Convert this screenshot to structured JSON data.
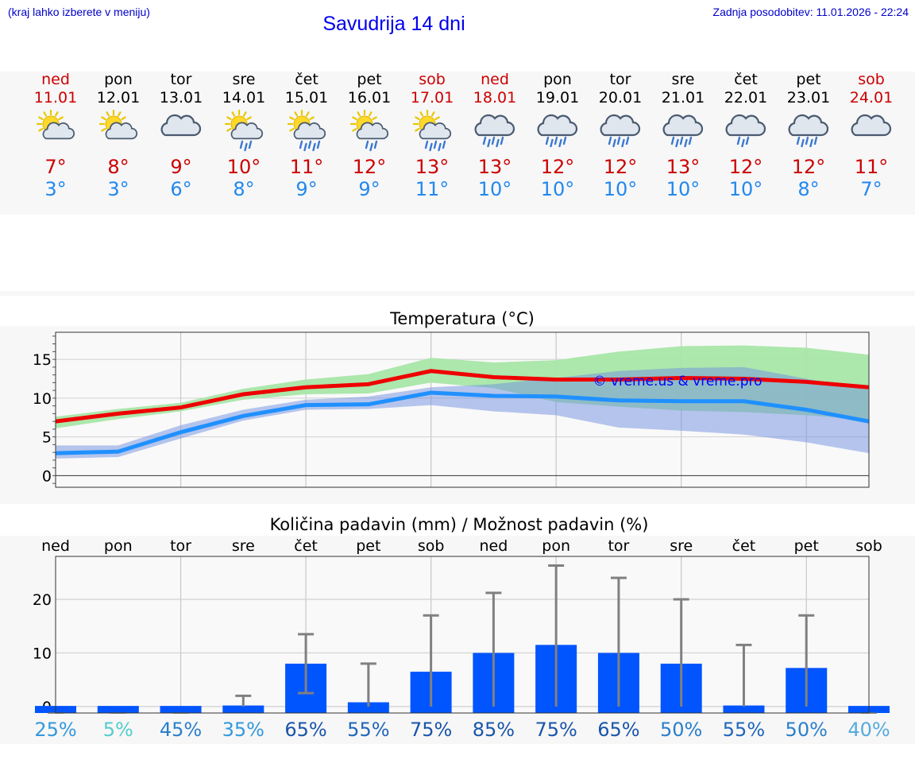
{
  "header": {
    "note": "(kraj lahko izberete v meniju)",
    "title": "Savudrija 14 dni",
    "updated": "Zadnja posodobitev: 11.01.2026 - 22:24"
  },
  "forecast": [
    {
      "day": "ned",
      "date": "11.01",
      "weekend": true,
      "icon": "sun-cloud-icon",
      "tmax": "7°",
      "tmin": "3°"
    },
    {
      "day": "pon",
      "date": "12.01",
      "weekend": false,
      "icon": "sun-cloud-icon",
      "tmax": "8°",
      "tmin": "3°"
    },
    {
      "day": "tor",
      "date": "13.01",
      "weekend": false,
      "icon": "cloud-icon",
      "tmax": "9°",
      "tmin": "6°"
    },
    {
      "day": "sre",
      "date": "14.01",
      "weekend": false,
      "icon": "sun-cloud-rain-icon",
      "tmax": "10°",
      "tmin": "8°"
    },
    {
      "day": "čet",
      "date": "15.01",
      "weekend": false,
      "icon": "sun-cloud-heavy-rain-icon",
      "tmax": "11°",
      "tmin": "9°"
    },
    {
      "day": "pet",
      "date": "16.01",
      "weekend": false,
      "icon": "sun-cloud-rain-icon",
      "tmax": "12°",
      "tmin": "9°"
    },
    {
      "day": "sob",
      "date": "17.01",
      "weekend": true,
      "icon": "sun-cloud-heavy-rain-icon",
      "tmax": "13°",
      "tmin": "11°"
    },
    {
      "day": "ned",
      "date": "18.01",
      "weekend": true,
      "icon": "cloud-heavy-rain-icon",
      "tmax": "13°",
      "tmin": "10°"
    },
    {
      "day": "pon",
      "date": "19.01",
      "weekend": false,
      "icon": "cloud-heavy-rain-icon",
      "tmax": "12°",
      "tmin": "10°"
    },
    {
      "day": "tor",
      "date": "20.01",
      "weekend": false,
      "icon": "cloud-heavy-rain-icon",
      "tmax": "12°",
      "tmin": "10°"
    },
    {
      "day": "sre",
      "date": "21.01",
      "weekend": false,
      "icon": "cloud-heavy-rain-icon",
      "tmax": "13°",
      "tmin": "10°"
    },
    {
      "day": "čet",
      "date": "22.01",
      "weekend": false,
      "icon": "cloud-rain-icon",
      "tmax": "12°",
      "tmin": "10°"
    },
    {
      "day": "pet",
      "date": "23.01",
      "weekend": false,
      "icon": "cloud-heavy-rain-icon",
      "tmax": "12°",
      "tmin": "8°"
    },
    {
      "day": "sob",
      "date": "24.01",
      "weekend": true,
      "icon": "cloud-icon",
      "tmax": "11°",
      "tmin": "7°"
    }
  ],
  "colors": {
    "max_line": "#ee0000",
    "min_line": "#2090ff",
    "max_band": "#a8e6a8",
    "min_band": "#aabfef",
    "overlap_band": "#80c8a8",
    "bar": "#0055ff",
    "whisker": "#808080",
    "weekend": "#cc0000"
  },
  "chart_data": [
    {
      "type": "line",
      "title": "Temperatura (°C)",
      "x": [
        0,
        1,
        2,
        3,
        4,
        5,
        6,
        7,
        8,
        9,
        10,
        11,
        12,
        13
      ],
      "ylim": [
        -1.5,
        18.5
      ],
      "yticks": [
        0,
        5,
        10,
        15
      ],
      "watermark": "© vreme.us & vreme.pro",
      "series": [
        {
          "name": "max",
          "values": [
            7,
            8,
            8.8,
            10.5,
            11.4,
            11.8,
            13.5,
            12.7,
            12.4,
            12.4,
            12.6,
            12.5,
            12.1,
            11.4
          ],
          "band_low": [
            6.1,
            7.3,
            8.3,
            9.8,
            10.5,
            10.6,
            12,
            11.3,
            9.5,
            8.9,
            8.4,
            8.2,
            7.8,
            7.2
          ],
          "band_high": [
            7.6,
            8.6,
            9.4,
            11.2,
            12.4,
            13.1,
            15.2,
            14.6,
            14.9,
            16,
            16.7,
            16.8,
            16.5,
            15.6
          ]
        },
        {
          "name": "min",
          "values": [
            2.9,
            3.1,
            5.6,
            7.7,
            9.1,
            9.2,
            10.7,
            10.3,
            10.2,
            9.7,
            9.6,
            9.6,
            8.5,
            7
          ],
          "band_low": [
            2.2,
            2.4,
            4.8,
            7.1,
            8.5,
            8.6,
            9.1,
            8.3,
            7.8,
            6.2,
            5.8,
            5.3,
            4.3,
            2.9
          ],
          "band_high": [
            3.9,
            3.9,
            6.5,
            8.5,
            9.8,
            10.2,
            11.4,
            11.8,
            12.6,
            13.5,
            13.9,
            14,
            12.5,
            11.1
          ]
        }
      ]
    },
    {
      "type": "bar",
      "title": "Količina padavin (mm) / Možnost padavin (%)",
      "categories": [
        "ned",
        "pon",
        "tor",
        "sre",
        "čet",
        "pet",
        "sob",
        "ned",
        "pon",
        "tor",
        "sre",
        "čet",
        "pet",
        "sob"
      ],
      "values": [
        0,
        0,
        0,
        0.2,
        8,
        0.8,
        6.5,
        10,
        11.5,
        10,
        8,
        0.2,
        7.2,
        0
      ],
      "err_low": [
        0,
        0,
        0,
        0,
        2.5,
        0,
        0,
        0,
        0,
        0,
        0,
        0,
        0,
        0
      ],
      "err_high": [
        0,
        0,
        0,
        2,
        13.5,
        8,
        17,
        21.2,
        26.3,
        24,
        20,
        11.5,
        17,
        0
      ],
      "ylim": [
        -1.2,
        28
      ],
      "yticks": [
        0,
        10,
        20
      ],
      "probability": [
        "25%",
        "5%",
        "45%",
        "35%",
        "65%",
        "55%",
        "75%",
        "85%",
        "75%",
        "65%",
        "50%",
        "55%",
        "50%",
        "40%"
      ],
      "probability_colors": [
        "#3399dd",
        "#55cccc",
        "#2a7fcc",
        "#3399dd",
        "#1a55aa",
        "#1f66bb",
        "#1a55aa",
        "#1a55aa",
        "#1a55aa",
        "#1a55aa",
        "#2a7fcc",
        "#1f66bb",
        "#2a7fcc",
        "#55aadd"
      ]
    }
  ]
}
